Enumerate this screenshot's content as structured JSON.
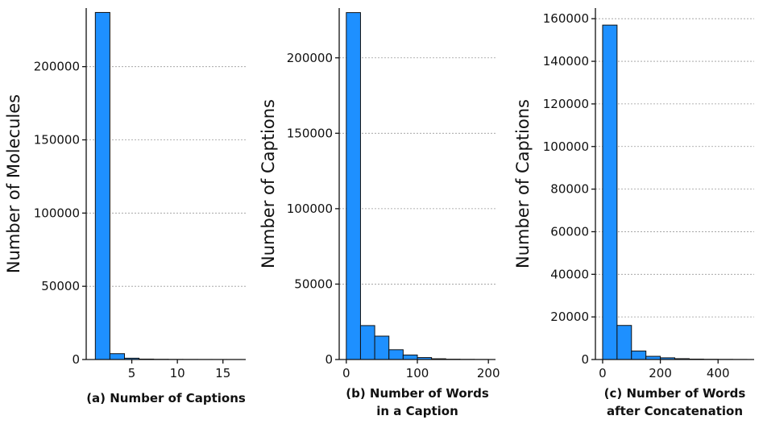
{
  "chart_data": [
    {
      "type": "bar",
      "title": "",
      "caption": "(a) Number of Captions",
      "xlabel": "",
      "ylabel": "Number of Molecules",
      "xlim": [
        0,
        17.5
      ],
      "ylim": [
        0,
        240000
      ],
      "xticks": [
        5,
        10,
        15
      ],
      "yticks": [
        0,
        50000,
        100000,
        150000,
        200000
      ],
      "grid": "y",
      "bin_edges": [
        1,
        2.6,
        4.2,
        5.8,
        7.4,
        9.0,
        10.6,
        12.2,
        13.8,
        15.4,
        17.0
      ],
      "values": [
        237000,
        4000,
        900,
        300,
        150,
        80,
        50,
        30,
        20,
        10
      ]
    },
    {
      "type": "bar",
      "title": "",
      "caption": "(b) Number of Words in a Caption",
      "caption_lines": [
        "(b) Number of Words",
        "in a Caption"
      ],
      "xlabel": "",
      "ylabel": "Number of Captions",
      "xlim": [
        -10,
        210
      ],
      "ylim": [
        0,
        233000
      ],
      "xticks": [
        0,
        100,
        200
      ],
      "yticks": [
        0,
        50000,
        100000,
        150000,
        200000
      ],
      "grid": "y",
      "bin_edges": [
        0,
        20,
        40,
        60,
        80,
        100,
        120,
        140,
        160,
        180,
        200
      ],
      "values": [
        230000,
        22500,
        15500,
        6500,
        3000,
        1300,
        500,
        200,
        100,
        50
      ]
    },
    {
      "type": "bar",
      "title": "",
      "caption": "(c) Number of Words after Concatenation",
      "caption_lines": [
        "(c) Number of Words",
        "after Concatenation"
      ],
      "xlabel": "",
      "ylabel": "Number of Captions",
      "xlim": [
        -25,
        525
      ],
      "ylim": [
        0,
        165000
      ],
      "xticks": [
        0,
        200,
        400
      ],
      "yticks": [
        0,
        20000,
        40000,
        60000,
        80000,
        100000,
        120000,
        140000,
        160000
      ],
      "grid": "y",
      "bin_edges": [
        0,
        50,
        100,
        150,
        200,
        250,
        300,
        350,
        400,
        450,
        500
      ],
      "values": [
        157000,
        16000,
        4000,
        1500,
        800,
        400,
        200,
        100,
        60,
        30
      ]
    }
  ]
}
